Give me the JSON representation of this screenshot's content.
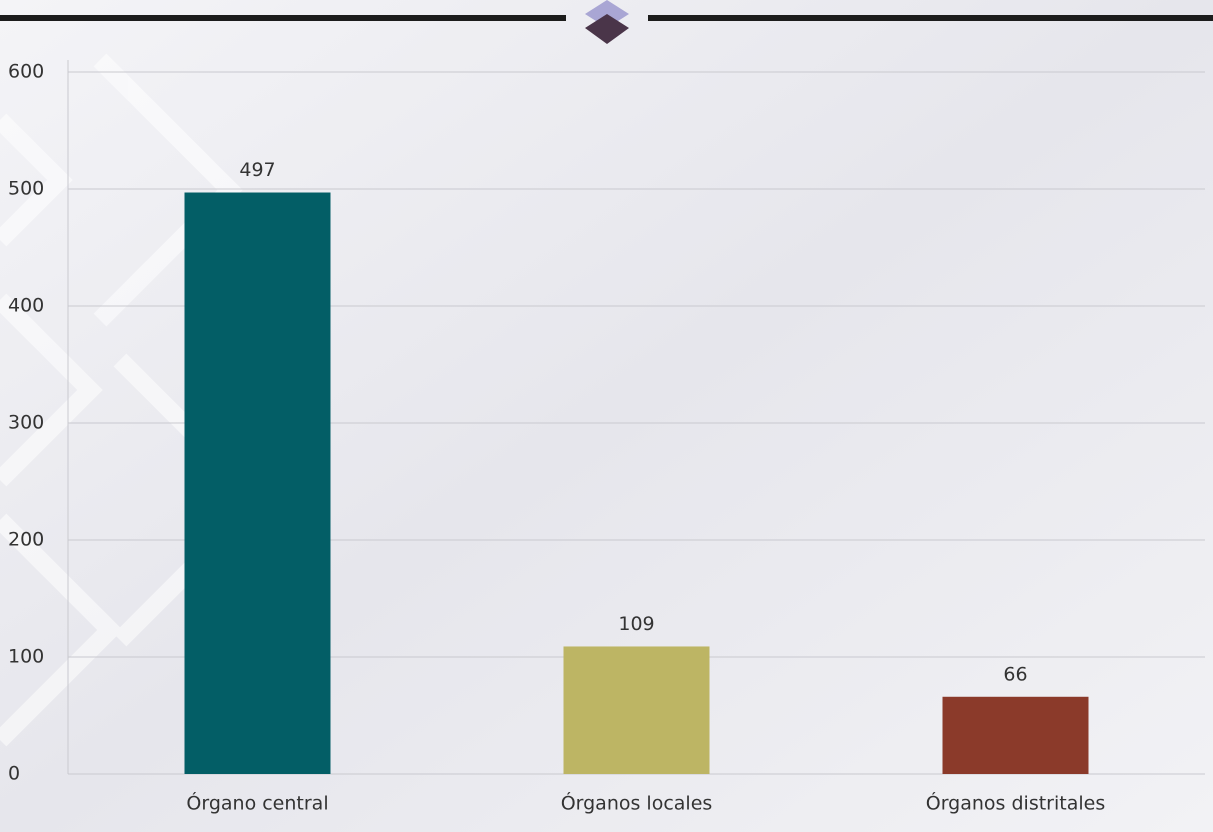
{
  "chart_data": {
    "type": "bar",
    "categories": [
      "Órgano central",
      "Órganos locales",
      "Órganos distritales"
    ],
    "values": [
      497,
      109,
      66
    ],
    "colors": [
      "#035e66",
      "#bdb564",
      "#8b3a2a"
    ],
    "ylim": [
      0,
      600
    ],
    "yticks": [
      0,
      100,
      200,
      300,
      400,
      500,
      600
    ],
    "grid": true
  }
}
